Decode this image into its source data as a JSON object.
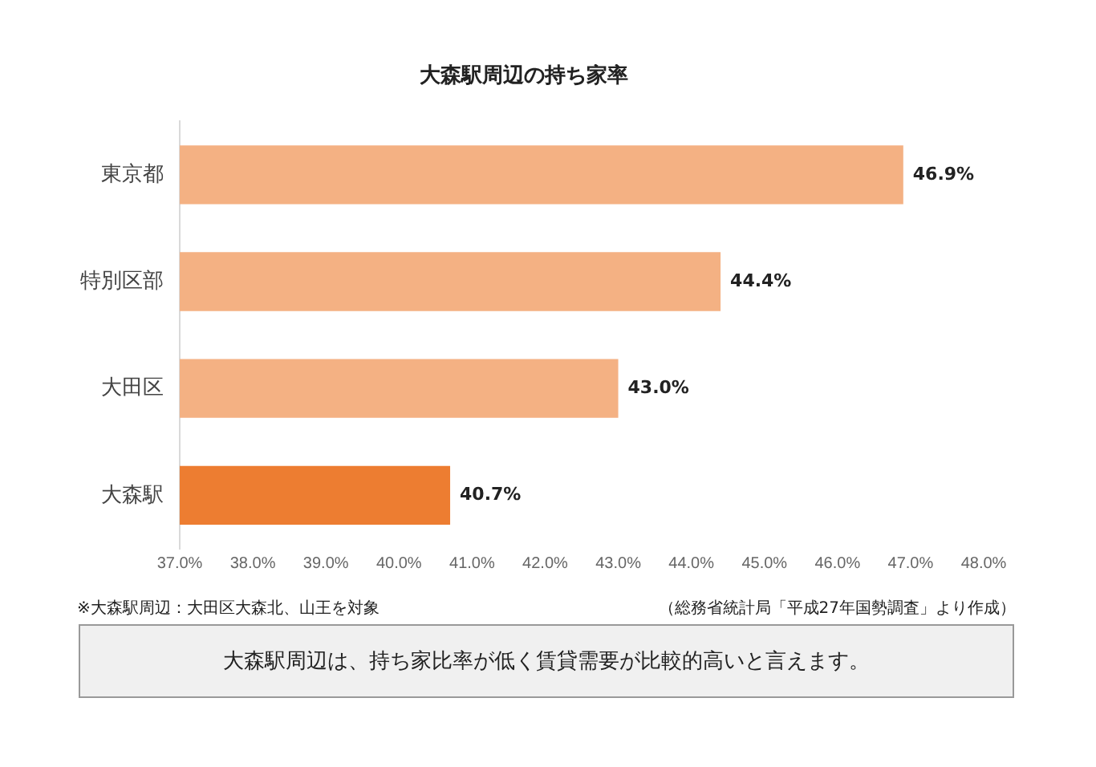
{
  "chart_data": {
    "type": "bar",
    "orientation": "horizontal",
    "title": "大森駅周辺の持ち家率",
    "categories": [
      "東京都",
      "特別区部",
      "大田区",
      "大森駅"
    ],
    "values": [
      46.9,
      44.4,
      43.0,
      40.7
    ],
    "colors": [
      "#f4b183",
      "#f4b183",
      "#f4b183",
      "#ed7d31"
    ],
    "value_labels": [
      "46.9%",
      "44.4%",
      "43.0%",
      "40.7%"
    ],
    "xlim": [
      37,
      48
    ],
    "xticks": [
      {
        "value": 37,
        "label": "37.0%"
      },
      {
        "value": 38,
        "label": "38.0%"
      },
      {
        "value": 39,
        "label": "39.0%"
      },
      {
        "value": 40,
        "label": "40.0%"
      },
      {
        "value": 41,
        "label": "41.0%"
      },
      {
        "value": 42,
        "label": "42.0%"
      },
      {
        "value": 43,
        "label": "43.0%"
      },
      {
        "value": 44,
        "label": "44.0%"
      },
      {
        "value": 45,
        "label": "45.0%"
      },
      {
        "value": 46,
        "label": "46.0%"
      },
      {
        "value": 47,
        "label": "47.0%"
      },
      {
        "value": 48,
        "label": "48.0%"
      }
    ],
    "annotations": [
      "※大森駅周辺：大田区大森北、山王を対象",
      "（総務省統計局「平成27年国勢調査」より作成）",
      "大森駅周辺は、持ち家比率が低く賃貸需要が比較的高いと言えます。"
    ]
  }
}
